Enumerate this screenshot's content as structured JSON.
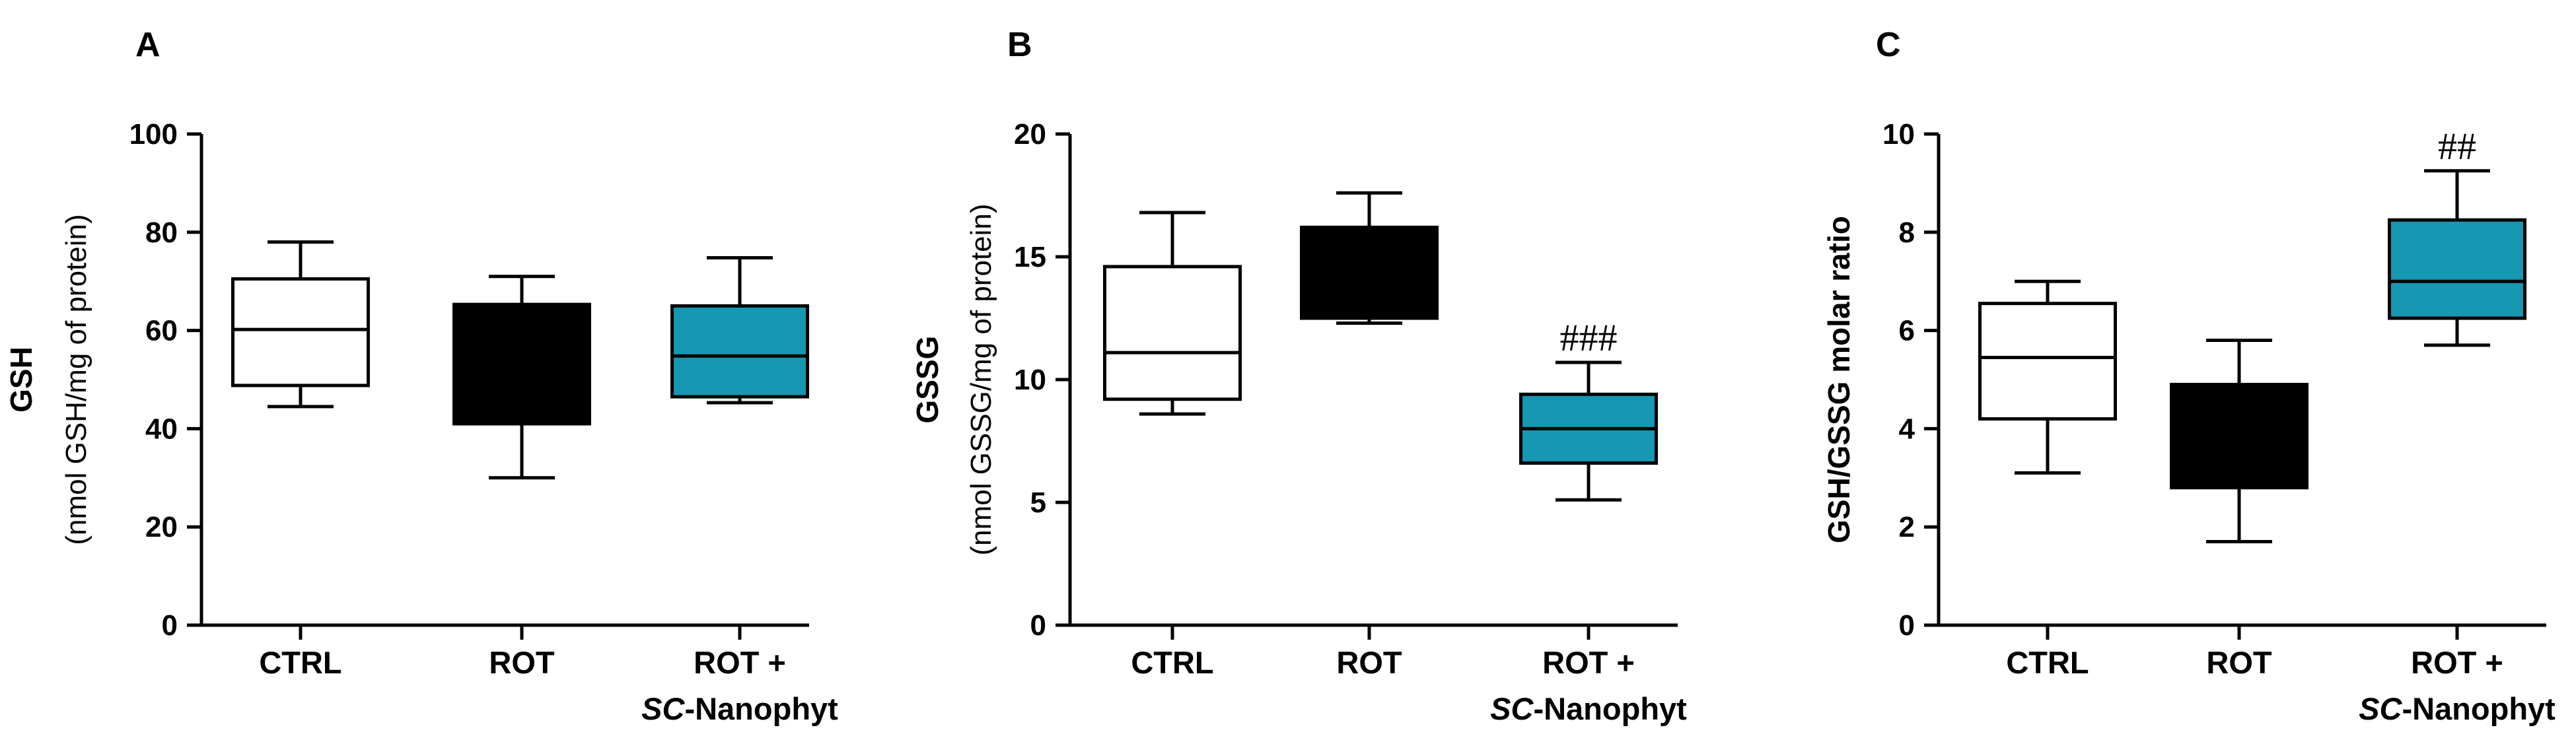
{
  "colors": {
    "CTRL": "#ffffff",
    "ROT": "#000000",
    "ROT + SC-Nanophyt": "#1697b2"
  },
  "chart_data": [
    {
      "type": "box",
      "panel": "A",
      "ylabel": "GSH",
      "ylabel_unit": "(nmol GSH/mg of protein)",
      "ylim": [
        0,
        100
      ],
      "yticks": [
        0,
        20,
        40,
        60,
        80,
        100
      ],
      "categories": [
        {
          "line1": "CTRL",
          "line2_italic": "",
          "line2_rest": ""
        },
        {
          "line1": "ROT",
          "line2_italic": "",
          "line2_rest": ""
        },
        {
          "line1": "ROT +",
          "line2_italic": "SC",
          "line2_rest": "-Nanophyt"
        }
      ],
      "series": [
        {
          "name": "CTRL",
          "min": 44.5,
          "q1": 48.8,
          "median": 60.2,
          "q3": 70.5,
          "max": 78,
          "annotation": ""
        },
        {
          "name": "ROT",
          "min": 30,
          "q1": 41,
          "median": 41,
          "q3": 65.3,
          "max": 71,
          "annotation": ""
        },
        {
          "name": "ROT + SC-Nanophyt",
          "min": 45.3,
          "q1": 46.5,
          "median": 54.8,
          "q3": 65,
          "max": 74.8,
          "annotation": ""
        }
      ]
    },
    {
      "type": "box",
      "panel": "B",
      "ylabel": "GSSG",
      "ylabel_unit": "(nmol GSSG/mg of protein)",
      "ylim": [
        0,
        20
      ],
      "yticks": [
        0,
        5,
        10,
        15,
        20
      ],
      "categories": [
        {
          "line1": "CTRL",
          "line2_italic": "",
          "line2_rest": ""
        },
        {
          "line1": "ROT",
          "line2_italic": "",
          "line2_rest": ""
        },
        {
          "line1": "ROT +",
          "line2_italic": "SC",
          "line2_rest": "-Nanophyt"
        }
      ],
      "series": [
        {
          "name": "CTRL",
          "min": 8.6,
          "q1": 9.2,
          "median": 11.1,
          "q3": 14.6,
          "max": 16.8,
          "annotation": ""
        },
        {
          "name": "ROT",
          "min": 12.3,
          "q1": 12.5,
          "median": 12.5,
          "q3": 16.2,
          "max": 17.6,
          "annotation": ""
        },
        {
          "name": "ROT + SC-Nanophyt",
          "min": 5.1,
          "q1": 6.6,
          "median": 8.0,
          "q3": 9.4,
          "max": 10.7,
          "annotation": "###"
        }
      ]
    },
    {
      "type": "box",
      "panel": "C",
      "ylabel": "GSH/GSSG molar ratio",
      "ylabel_unit": "",
      "ylim": [
        0,
        10
      ],
      "yticks": [
        0,
        2,
        4,
        6,
        8,
        10
      ],
      "categories": [
        {
          "line1": "CTRL",
          "line2_italic": "",
          "line2_rest": ""
        },
        {
          "line1": "ROT",
          "line2_italic": "",
          "line2_rest": ""
        },
        {
          "line1": "ROT +",
          "line2_italic": "SC",
          "line2_rest": "-Nanophyt"
        }
      ],
      "series": [
        {
          "name": "CTRL",
          "min": 3.1,
          "q1": 4.2,
          "median": 5.45,
          "q3": 6.55,
          "max": 7.0,
          "annotation": ""
        },
        {
          "name": "ROT",
          "min": 1.7,
          "q1": 2.8,
          "median": 2.8,
          "q3": 4.9,
          "max": 5.8,
          "annotation": ""
        },
        {
          "name": "ROT + SC-Nanophyt",
          "min": 5.7,
          "q1": 6.25,
          "median": 7.0,
          "q3": 8.25,
          "max": 9.25,
          "annotation": "##"
        }
      ]
    }
  ]
}
